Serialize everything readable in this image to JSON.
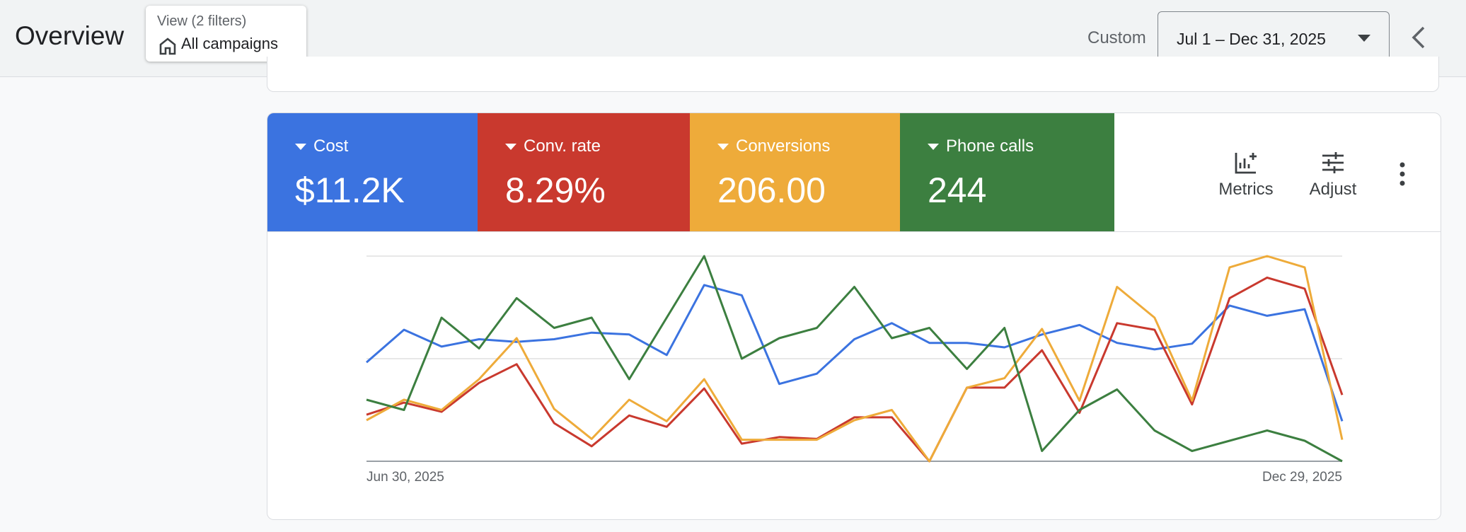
{
  "header": {
    "title": "Overview",
    "filter_label": "View (2 filters)",
    "filter_value": "All campaigns",
    "date_preset": "Custom",
    "date_range": "Jul 1 – Dec 31, 2025"
  },
  "scorecards": [
    {
      "value": "$11.2K"
    },
    {
      "value": "8.29%"
    },
    {
      "value": "206.00"
    },
    {
      "value": "244"
    }
  ],
  "toolbar": {
    "metrics": "Metrics",
    "adjust": "Adjust"
  },
  "chart_data": {
    "type": "line",
    "categories": [
      "Jun 30, 2025",
      null,
      null,
      null,
      null,
      null,
      null,
      null,
      null,
      null,
      null,
      null,
      null,
      null,
      null,
      null,
      null,
      null,
      null,
      null,
      null,
      null,
      null,
      null,
      null,
      null,
      "Dec 29, 2025"
    ],
    "series": [
      {
        "name": "Cost",
        "color": "#3b73e0",
        "values": [
          48.2,
          64.1,
          55.9,
          59.5,
          58.2,
          59.5,
          62.7,
          61.8,
          51.8,
          85.9,
          80.9,
          37.7,
          42.7,
          59.5,
          67.3,
          57.7,
          57.7,
          55.5,
          61.8,
          66.4,
          57.7,
          54.5,
          57.3,
          75.9,
          70.9,
          74.1,
          19.5
        ]
      },
      {
        "name": "Conv. rate",
        "color": "#c9392e",
        "values": [
          22.7,
          28.6,
          24.1,
          38.2,
          47.3,
          18.6,
          7.3,
          22.3,
          16.8,
          35.5,
          8.6,
          11.8,
          10.9,
          21.4,
          21.4,
          0,
          35.9,
          35.9,
          54.1,
          23.6,
          67.3,
          64.1,
          27.7,
          79.5,
          89.5,
          84.1,
          32.3
        ]
      },
      {
        "name": "Conversions",
        "color": "#eeab3a",
        "values": [
          20,
          30,
          25,
          40,
          60,
          25.5,
          10.9,
          30,
          19.5,
          40,
          10.5,
          10.5,
          10.5,
          20,
          25,
          0,
          35.9,
          40.5,
          64.5,
          29.5,
          85,
          70,
          29.5,
          94.5,
          100,
          94.5,
          10.5
        ]
      },
      {
        "name": "Phone calls",
        "color": "#3c7f40",
        "values": [
          30,
          25,
          70,
          55,
          79.5,
          65,
          70,
          40,
          70,
          100,
          50,
          60,
          65,
          85,
          60,
          65,
          45,
          65,
          5,
          25,
          35,
          15,
          5,
          10,
          15,
          10,
          0
        ]
      }
    ],
    "ylim": [
      0,
      100
    ],
    "gridlines": [
      0,
      50,
      100
    ]
  }
}
